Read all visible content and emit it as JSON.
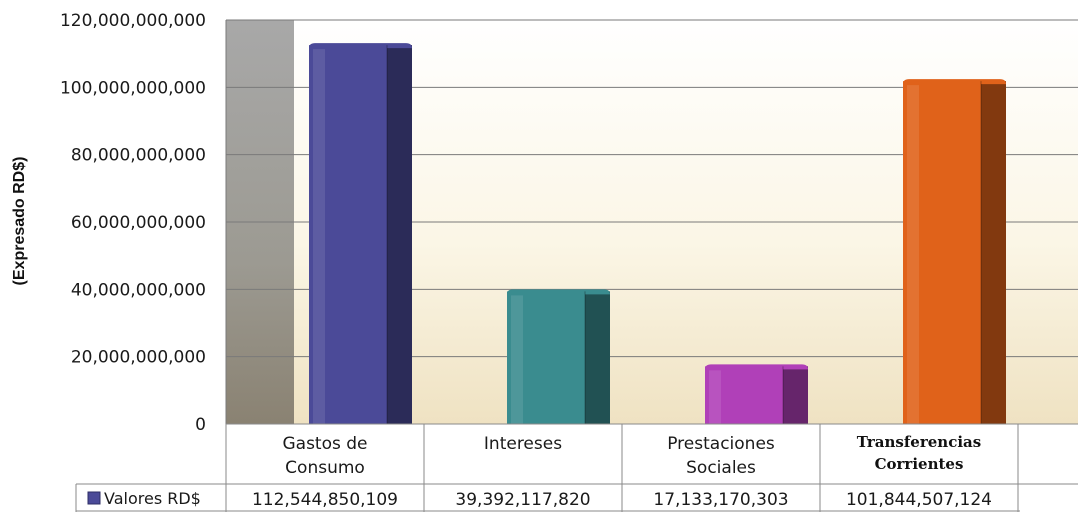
{
  "chart_data": {
    "type": "bar",
    "title": "",
    "xlabel": "",
    "ylabel": "(Expresado RD$)",
    "ylim": [
      0,
      120000000000
    ],
    "yticks": [
      0,
      20000000000,
      40000000000,
      60000000000,
      80000000000,
      100000000000,
      120000000000
    ],
    "ytick_labels": [
      "0",
      "20,000,000,000",
      "40,000,000,000",
      "60,000,000,000",
      "80,000,000,000",
      "100,000,000,000",
      "120,000,000,000"
    ],
    "grid": true,
    "categories": [
      [
        "Gastos de",
        "Consumo"
      ],
      [
        "Intereses"
      ],
      [
        "Prestaciones",
        "Sociales"
      ],
      [
        "Transferencias",
        "Corrientes"
      ]
    ],
    "series": [
      {
        "name": "Valores RD$",
        "values": [
          112544850109,
          39392117820,
          17133170303,
          101844507124
        ],
        "value_labels": [
          "112,544,850,109",
          "39,392,117,820",
          "17,133,170,303",
          "101,844,507,124"
        ]
      }
    ],
    "colors": [
      "#4b4a98",
      "#3a8c8f",
      "#b040b8",
      "#e0621a"
    ],
    "legend_swatch_color": "#4b4a98",
    "data_table": true
  }
}
